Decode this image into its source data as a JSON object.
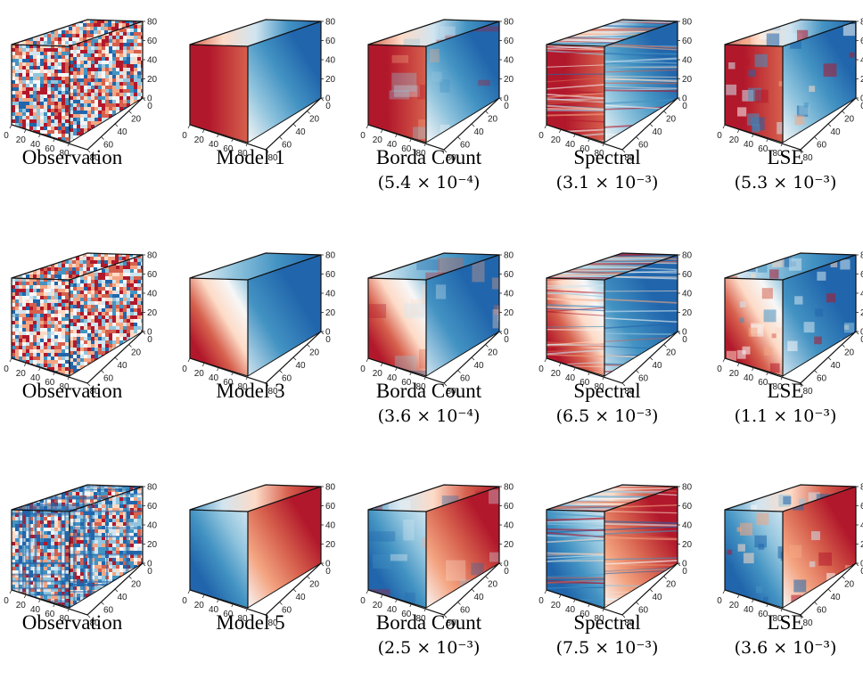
{
  "axis_ticks": {
    "z": [
      "0",
      "20",
      "40",
      "60",
      "80"
    ],
    "x": [
      "0",
      "20",
      "40",
      "60",
      "80"
    ],
    "y": [
      "80",
      "60",
      "40",
      "20",
      "0"
    ]
  },
  "colors": {
    "red": "#b2182b",
    "blue": "#2166ac",
    "white": "#f7f7f7"
  },
  "rows": [
    {
      "panels": [
        {
          "title": "Observation",
          "score": "",
          "render": "noise",
          "palette": "rb"
        },
        {
          "title": "Model 1",
          "score": "",
          "render": "smooth",
          "palette": "red-left"
        },
        {
          "title": "Borda Count",
          "score": "(5.4 × 10⁻⁴)",
          "render": "blocky",
          "palette": "red-left"
        },
        {
          "title": "Spectral",
          "score": "(3.1 × 10⁻³)",
          "render": "streaky",
          "palette": "red-left"
        },
        {
          "title": "LSE",
          "score": "(5.3 × 10⁻³)",
          "render": "patchy",
          "palette": "red-left"
        }
      ]
    },
    {
      "panels": [
        {
          "title": "Observation",
          "score": "",
          "render": "noise",
          "palette": "rb"
        },
        {
          "title": "Model 3",
          "score": "",
          "render": "smooth",
          "palette": "red-corner"
        },
        {
          "title": "Borda Count",
          "score": "(3.6 × 10⁻⁴)",
          "render": "blocky",
          "palette": "red-corner"
        },
        {
          "title": "Spectral",
          "score": "(6.5 × 10⁻³)",
          "render": "streaky",
          "palette": "red-corner"
        },
        {
          "title": "LSE",
          "score": "(1.1 × 10⁻³)",
          "render": "patchy",
          "palette": "red-corner"
        }
      ]
    },
    {
      "panels": [
        {
          "title": "Observation",
          "score": "",
          "render": "noise",
          "palette": "blue-grid"
        },
        {
          "title": "Model 5",
          "score": "",
          "render": "smooth",
          "palette": "blue-left"
        },
        {
          "title": "Borda Count",
          "score": "(2.5 × 10⁻³)",
          "render": "blocky",
          "palette": "blue-left"
        },
        {
          "title": "Spectral",
          "score": "(7.5 × 10⁻³)",
          "render": "streaky",
          "palette": "blue-left"
        },
        {
          "title": "LSE",
          "score": "(3.6 × 10⁻³)",
          "render": "patchy",
          "palette": "blue-left"
        }
      ]
    }
  ]
}
